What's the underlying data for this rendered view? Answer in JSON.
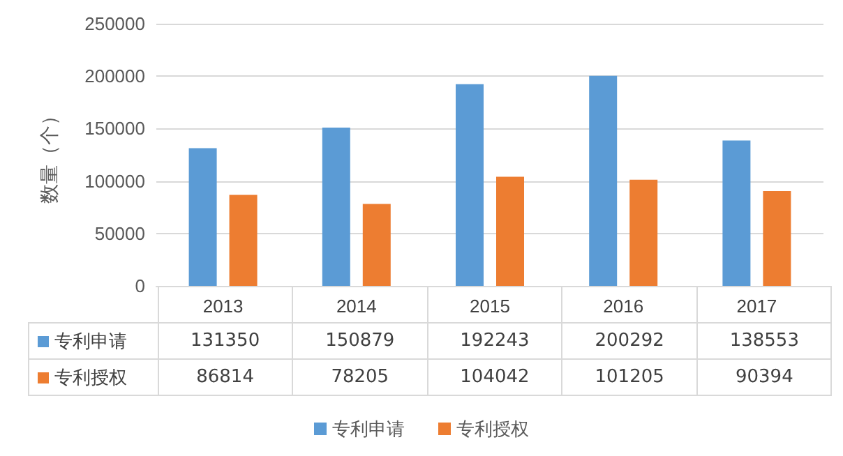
{
  "chart_data": {
    "type": "bar",
    "ylabel": "数量（个）",
    "categories": [
      "2013",
      "2014",
      "2015",
      "2016",
      "2017"
    ],
    "series": [
      {
        "name": "专利申请",
        "color": "#5b9bd5",
        "values": [
          131350,
          150879,
          192243,
          200292,
          138553
        ]
      },
      {
        "name": "专利授权",
        "color": "#ed7d31",
        "values": [
          86814,
          78205,
          104042,
          101205,
          90394
        ]
      }
    ],
    "ylim": [
      0,
      250000
    ],
    "yticks": [
      0,
      50000,
      100000,
      150000,
      200000,
      250000
    ],
    "grid": "y",
    "legend": "bottom",
    "data_labels": true
  }
}
